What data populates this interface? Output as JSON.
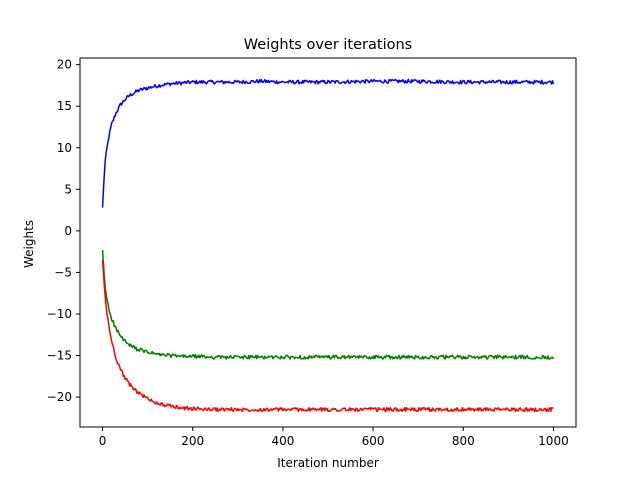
{
  "chart_data": {
    "type": "line",
    "title": "Weights over iterations",
    "xlabel": "Iteration number",
    "ylabel": "Weights",
    "xlim": [
      -50,
      1050
    ],
    "ylim": [
      -23.6,
      20.8
    ],
    "x_ticks": [
      0,
      200,
      400,
      600,
      800,
      1000
    ],
    "x_tick_labels": [
      "0",
      "200",
      "400",
      "600",
      "800",
      "1000"
    ],
    "y_ticks": [
      -20,
      -15,
      -10,
      -5,
      0,
      5,
      10,
      15,
      20
    ],
    "y_tick_labels": [
      "−20",
      "−15",
      "−10",
      "−5",
      "0",
      "5",
      "10",
      "15",
      "20"
    ],
    "grid": false,
    "legend": "none",
    "series": [
      {
        "color": "#0000ff",
        "x": [
          0,
          5,
          10,
          15,
          20,
          30,
          40,
          50,
          60,
          80,
          100,
          125,
          150,
          175,
          200,
          250,
          300,
          350,
          400,
          500,
          600,
          700,
          800,
          900,
          1000
        ],
        "y": [
          2.8,
          8.0,
          10.0,
          11.6,
          12.8,
          14.2,
          15.2,
          15.8,
          16.3,
          16.9,
          17.2,
          17.5,
          17.7,
          17.8,
          17.9,
          17.9,
          17.9,
          18.0,
          17.9,
          17.9,
          18.0,
          18.0,
          17.9,
          17.9,
          17.9
        ]
      },
      {
        "color": "#008000",
        "x": [
          0,
          5,
          10,
          15,
          20,
          30,
          40,
          50,
          60,
          80,
          100,
          125,
          150,
          175,
          200,
          250,
          300,
          350,
          400,
          500,
          600,
          700,
          800,
          900,
          1000
        ],
        "y": [
          -2.3,
          -6.5,
          -8.3,
          -9.6,
          -10.5,
          -11.8,
          -12.7,
          -13.3,
          -13.8,
          -14.3,
          -14.6,
          -14.9,
          -15.0,
          -15.1,
          -15.1,
          -15.2,
          -15.2,
          -15.2,
          -15.2,
          -15.2,
          -15.2,
          -15.2,
          -15.2,
          -15.2,
          -15.2
        ]
      },
      {
        "color": "#ff0000",
        "x": [
          0,
          5,
          10,
          15,
          20,
          30,
          40,
          50,
          60,
          80,
          100,
          125,
          150,
          175,
          200,
          250,
          300,
          350,
          400,
          500,
          600,
          700,
          800,
          900,
          1000
        ],
        "y": [
          -3.5,
          -7.5,
          -10.0,
          -11.8,
          -13.2,
          -15.3,
          -16.7,
          -17.7,
          -18.5,
          -19.5,
          -20.2,
          -20.8,
          -21.1,
          -21.3,
          -21.4,
          -21.5,
          -21.5,
          -21.5,
          -21.5,
          -21.5,
          -21.5,
          -21.5,
          -21.5,
          -21.5,
          -21.5
        ]
      }
    ]
  }
}
